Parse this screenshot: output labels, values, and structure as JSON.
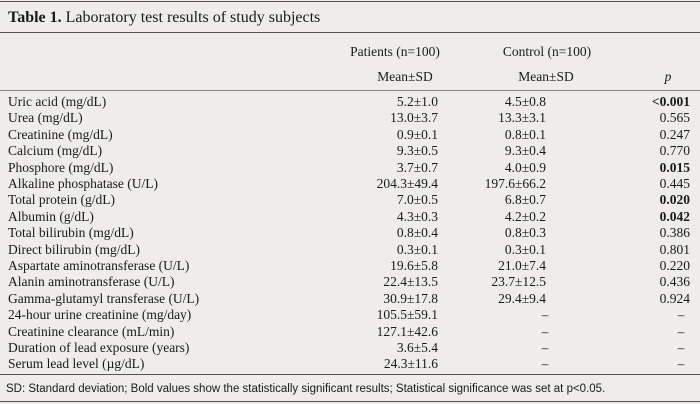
{
  "title": {
    "label": "Table 1.",
    "text": "Laboratory test results of study subjects"
  },
  "table": {
    "group_headers": [
      "Patients (n=100)",
      "Control (n=100)"
    ],
    "sub_headers": [
      "Mean±SD",
      "Mean±SD",
      "p"
    ],
    "rows": [
      {
        "cells": [
          "Uric acid (mg/dL)",
          "5.2±1.0",
          "4.5±0.8",
          "<0.001"
        ],
        "bold": true
      },
      {
        "cells": [
          "Urea (mg/dL)",
          "13.0±3.7",
          "13.3±3.1",
          "0.565"
        ],
        "bold": false
      },
      {
        "cells": [
          "Creatinine (mg/dL)",
          "0.9±0.1",
          "0.8±0.1",
          "0.247"
        ],
        "bold": false
      },
      {
        "cells": [
          "Calcium (mg/dL)",
          "9.3±0.5",
          "9.3±0.4",
          "0.770"
        ],
        "bold": false
      },
      {
        "cells": [
          "Phosphore (mg/dL)",
          "3.7±0.7",
          "4.0±0.9",
          "0.015"
        ],
        "bold": true
      },
      {
        "cells": [
          "Alkaline phosphatase (U/L)",
          "204.3±49.4",
          "197.6±66.2",
          "0.445"
        ],
        "bold": false
      },
      {
        "cells": [
          "Total protein (g/dL)",
          "7.0±0.5",
          "6.8±0.7",
          "0.020"
        ],
        "bold": true
      },
      {
        "cells": [
          "Albumin (g/dL)",
          "4.3±0.3",
          "4.2±0.2",
          "0.042"
        ],
        "bold": true
      },
      {
        "cells": [
          "Total bilirubin (mg/dL)",
          "0.8±0.4",
          "0.8±0.3",
          "0.386"
        ],
        "bold": false
      },
      {
        "cells": [
          "Direct bilirubin (mg/dL)",
          "0.3±0.1",
          "0.3±0.1",
          "0.801"
        ],
        "bold": false
      },
      {
        "cells": [
          "Aspartate aminotransferase (U/L)",
          "19.6±5.8",
          "21.0±7.4",
          "0.220"
        ],
        "bold": false
      },
      {
        "cells": [
          "Alanin aminotransferase (U/L)",
          "22.4±13.5",
          "23.7±12.5",
          "0.436"
        ],
        "bold": false
      },
      {
        "cells": [
          "Gamma-glutamyl transferase (U/L)",
          "30.9±17.8",
          "29.4±9.4",
          "0.924"
        ],
        "bold": false
      },
      {
        "cells": [
          "24-hour urine creatinine (mg/day)",
          "105.5±59.1",
          "–",
          "–"
        ],
        "bold": false
      },
      {
        "cells": [
          "Creatinine clearance (mL/min)",
          "127.1±42.6",
          "–",
          "–"
        ],
        "bold": false
      },
      {
        "cells": [
          "Duration of lead exposure (years)",
          "3.6±5.4",
          "–",
          "–"
        ],
        "bold": false
      },
      {
        "cells": [
          "Serum lead level (µg/dL)",
          "24.3±11.6",
          "–",
          "–"
        ],
        "bold": false
      }
    ]
  },
  "footnote": "SD: Standard deviation; Bold values show the statistically significant results; Statistical significance was set at p<0.05."
}
